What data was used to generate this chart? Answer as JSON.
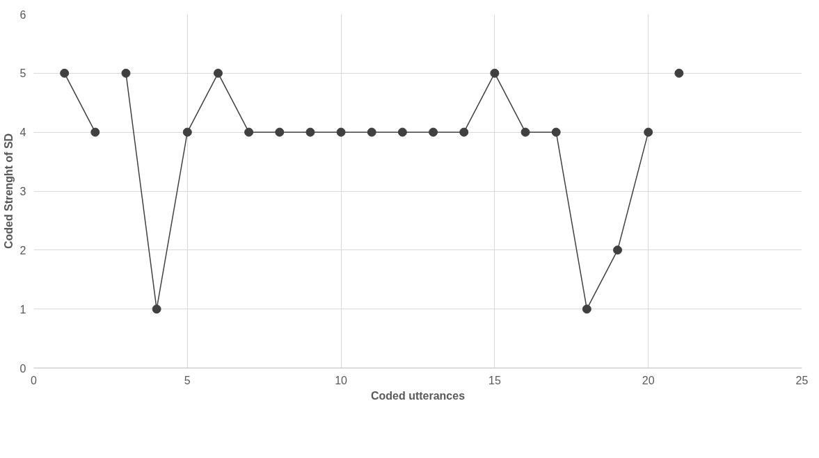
{
  "chart_data": {
    "type": "line",
    "xlabel": "Coded utterances",
    "ylabel": "Coded Strenght of SD",
    "xlim": [
      0,
      25
    ],
    "xticks": [
      0,
      5,
      10,
      15,
      20,
      25
    ],
    "ylim": [
      0,
      6
    ],
    "yticks": [
      0,
      1,
      2,
      3,
      4,
      5,
      6
    ],
    "grid": true,
    "marker": "circle",
    "line_style": "solid",
    "series": [
      {
        "color": "#404040",
        "x": [
          1,
          2
        ],
        "values": [
          5,
          4
        ]
      },
      {
        "color": "#404040",
        "x": [
          3,
          4,
          5,
          6,
          7,
          8,
          9,
          10,
          11,
          12,
          13,
          14,
          15,
          16,
          17,
          18,
          19,
          20
        ],
        "values": [
          5,
          1,
          4,
          5,
          4,
          4,
          4,
          4,
          4,
          4,
          4,
          4,
          5,
          4,
          4,
          1,
          2,
          4
        ]
      },
      {
        "color": "#404040",
        "x": [
          21
        ],
        "values": [
          5
        ]
      }
    ]
  }
}
